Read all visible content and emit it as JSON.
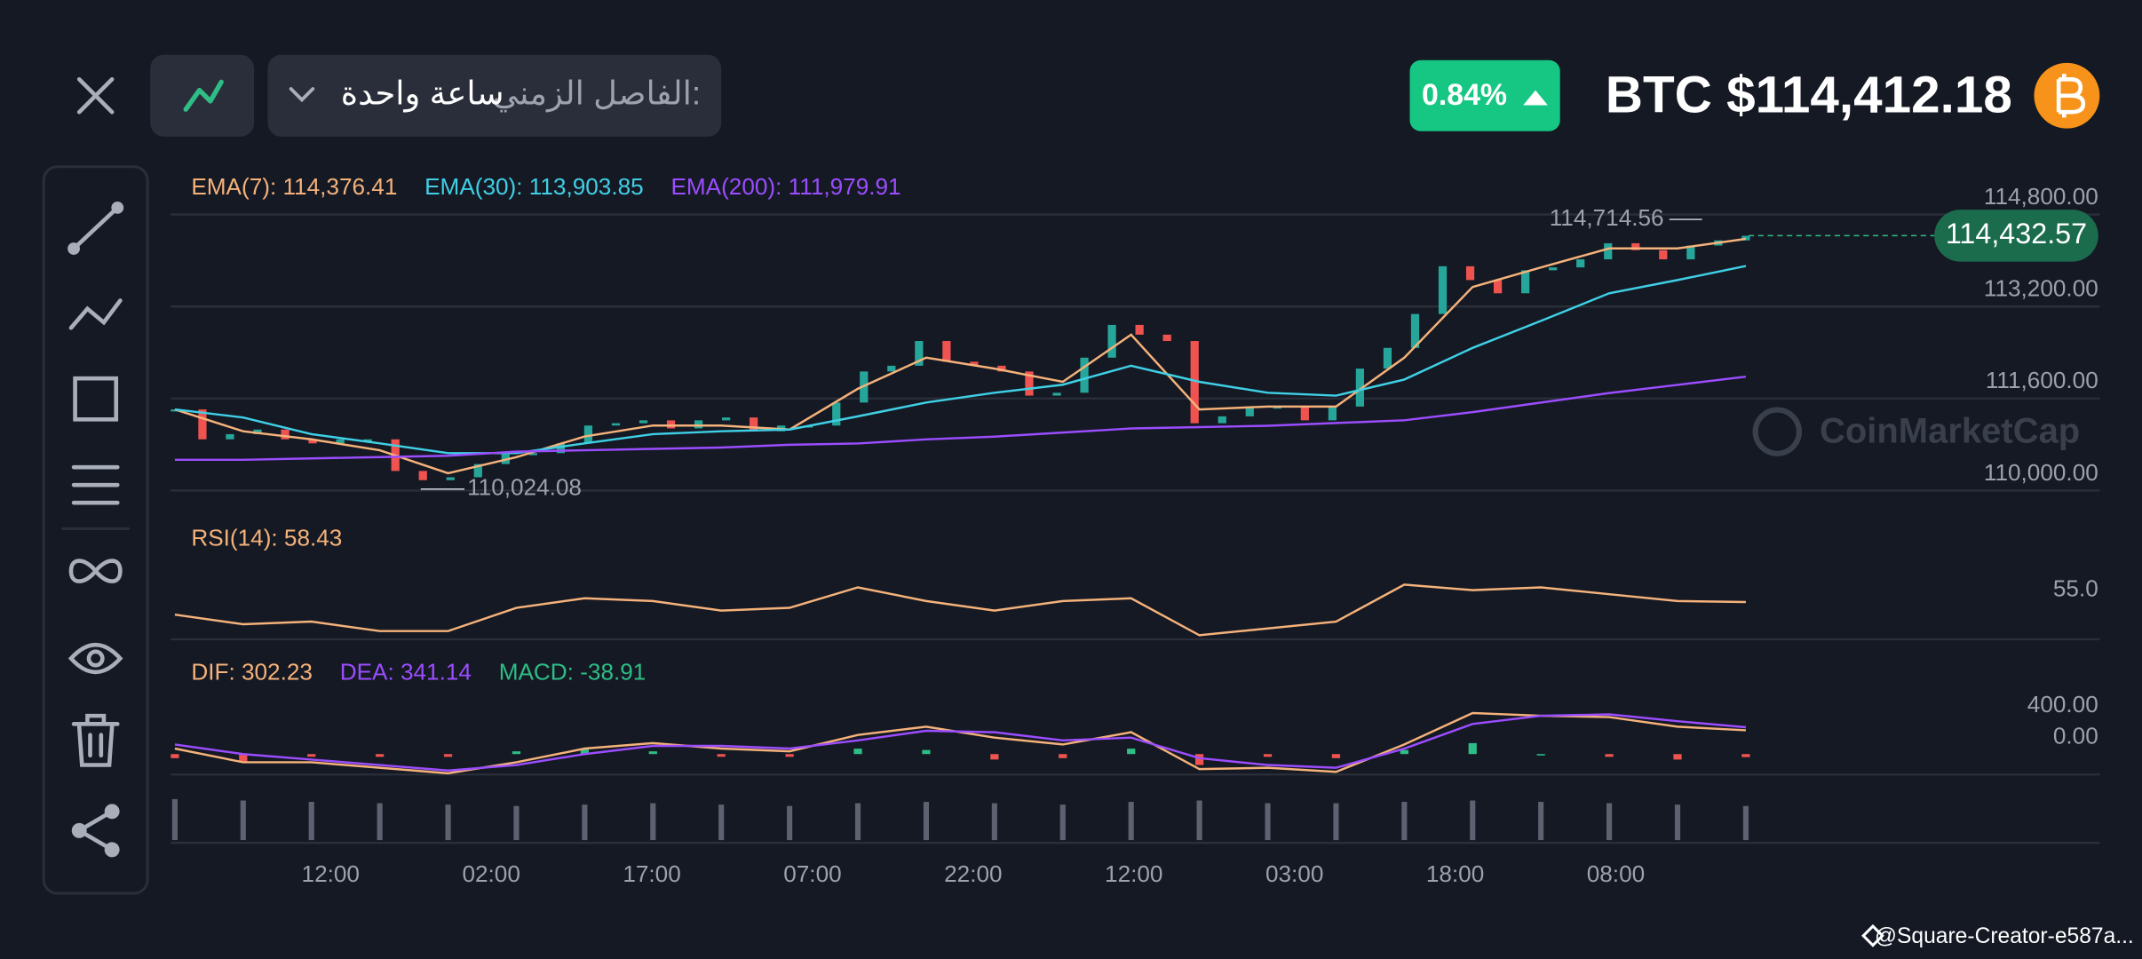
{
  "header": {
    "pair_price": "BTC $114,412.18",
    "change": "0.84%",
    "interval_label": "الفاصل الزمني:",
    "interval_value": "ساعة واحدة"
  },
  "chart_data": [
    {
      "type": "candlestick",
      "x_labels": [
        "12:00",
        "02:00",
        "17:00",
        "07:00",
        "22:00",
        "12:00",
        "03:00",
        "18:00",
        "08:00"
      ],
      "values": [
        111410,
        110890,
        110980,
        111060,
        110890,
        110820,
        110890,
        110890,
        110340,
        110180,
        110230,
        110460,
        110630,
        110650,
        110820,
        111130,
        111170,
        111220,
        111080,
        111220,
        111270,
        111030,
        111130,
        111130,
        111530,
        112070,
        112170,
        112600,
        112240,
        112170,
        112070,
        111650,
        111700,
        112310,
        112880,
        112710,
        112600,
        111170,
        111290,
        111460,
        111460,
        111220,
        111460,
        112120,
        112480,
        113070,
        113900,
        113660,
        113430,
        113830,
        113880,
        114020,
        114300,
        114180,
        114020,
        114260,
        114350,
        114430
      ],
      "up_color": "#26a69a",
      "down_color": "#ef5350",
      "series": [
        {
          "name": "EMA(7): 114,376.41",
          "color": "#f5b27a",
          "values": [
            111410,
            111030,
            110890,
            110700,
            110300,
            110580,
            110940,
            111130,
            111130,
            111060,
            111770,
            112310,
            112120,
            111890,
            112710,
            111410,
            111460,
            111460,
            112310,
            113540,
            113880,
            114210,
            114210,
            114376.41
          ]
        },
        {
          "name": "EMA(30): 113,903.85",
          "color": "#3fd0e6",
          "values": [
            111410,
            111270,
            110980,
            110820,
            110650,
            110650,
            110820,
            110980,
            111030,
            111060,
            111290,
            111530,
            111700,
            111840,
            112170,
            111890,
            111700,
            111650,
            111930,
            112480,
            112950,
            113430,
            113660,
            113903.85
          ]
        },
        {
          "name": "EMA(200): 111,979.91",
          "color": "#9b4dff",
          "values": [
            110534,
            110534,
            110558,
            110581,
            110605,
            110676,
            110700,
            110724,
            110747,
            110795,
            110818,
            110889,
            110937,
            111008,
            111079,
            111103,
            111126,
            111174,
            111221,
            111363,
            111529,
            111695,
            111837,
            111979.91
          ]
        }
      ],
      "ylim": [
        109740,
        115560
      ],
      "yticks": [
        {
          "value": 110000,
          "label": "110,000.00"
        },
        {
          "value": 111600,
          "label": "111,600.00"
        },
        {
          "value": 113200,
          "label": "113,200.00"
        },
        {
          "value": 114800,
          "label": "114,800.00"
        }
      ],
      "grid": true,
      "high": {
        "value": 114714.56,
        "label": "114,714.56"
      },
      "low": {
        "value": 110024.08,
        "label": "110,024.08"
      },
      "last_price": {
        "value": 114432.57,
        "label": "114,432.57"
      }
    },
    {
      "type": "line",
      "series": [
        {
          "name": "RSI(14): 58.43",
          "color": "#f5b27a",
          "values": [
            48.8,
            41.5,
            43.5,
            36.3,
            36.3,
            54.0,
            61.3,
            59.2,
            51.9,
            54.0,
            69.6,
            59.2,
            51.9,
            59.2,
            61.3,
            33.1,
            38.3,
            43.5,
            71.7,
            67.5,
            69.6,
            64.4,
            59.2,
            58.43
          ]
        }
      ],
      "ylim": [
        30,
        80
      ],
      "yticks": [
        {
          "value": 55,
          "label": "55.0"
        }
      ]
    },
    {
      "type": "macd",
      "series": [
        {
          "name": "DIF: 302.23",
          "color": "#f5b27a",
          "values": [
            70,
            -104,
            -104,
            -174,
            -244,
            -104,
            70,
            139,
            70,
            35,
            243,
            348,
            209,
            122,
            278,
            -191,
            -174,
            -226,
            122,
            522,
            487,
            470,
            348,
            302.23
          ]
        },
        {
          "name": "DEA: 341.14",
          "color": "#9b4dff",
          "values": [
            122,
            0,
            -70,
            -139,
            -209,
            -139,
            0,
            104,
            104,
            70,
            174,
            296,
            278,
            174,
            209,
            -52,
            -139,
            -174,
            70,
            383,
            487,
            505,
            418,
            341.14
          ]
        },
        {
          "name": "MACD: -38.91",
          "color": "#2ebd85",
          "values": [
            -52,
            -104,
            -34,
            -35,
            -35,
            35,
            70,
            35,
            -34,
            -35,
            69,
            52,
            -69,
            -52,
            69,
            -139,
            -35,
            -52,
            52,
            139,
            0,
            -35,
            -70,
            -38.91
          ]
        }
      ],
      "up_color": "#2ebd85",
      "down_color": "#ef5350",
      "ylim": [
        -260,
        1250
      ],
      "yticks": [
        {
          "value": 0,
          "label": "0.00"
        },
        {
          "value": 400,
          "label": "400.00"
        }
      ]
    },
    {
      "type": "bar",
      "color": "#5d6170",
      "values": [
        30,
        29,
        28,
        27,
        26,
        25,
        26,
        27,
        26,
        25,
        27,
        28,
        27,
        26,
        28,
        29,
        27,
        27,
        28,
        29,
        28,
        27,
        26,
        25
      ],
      "ylim": [
        0,
        32
      ]
    }
  ],
  "footer": {
    "watermark": "CoinMarketCap",
    "credit": "@Square-Creator-e587a..."
  }
}
